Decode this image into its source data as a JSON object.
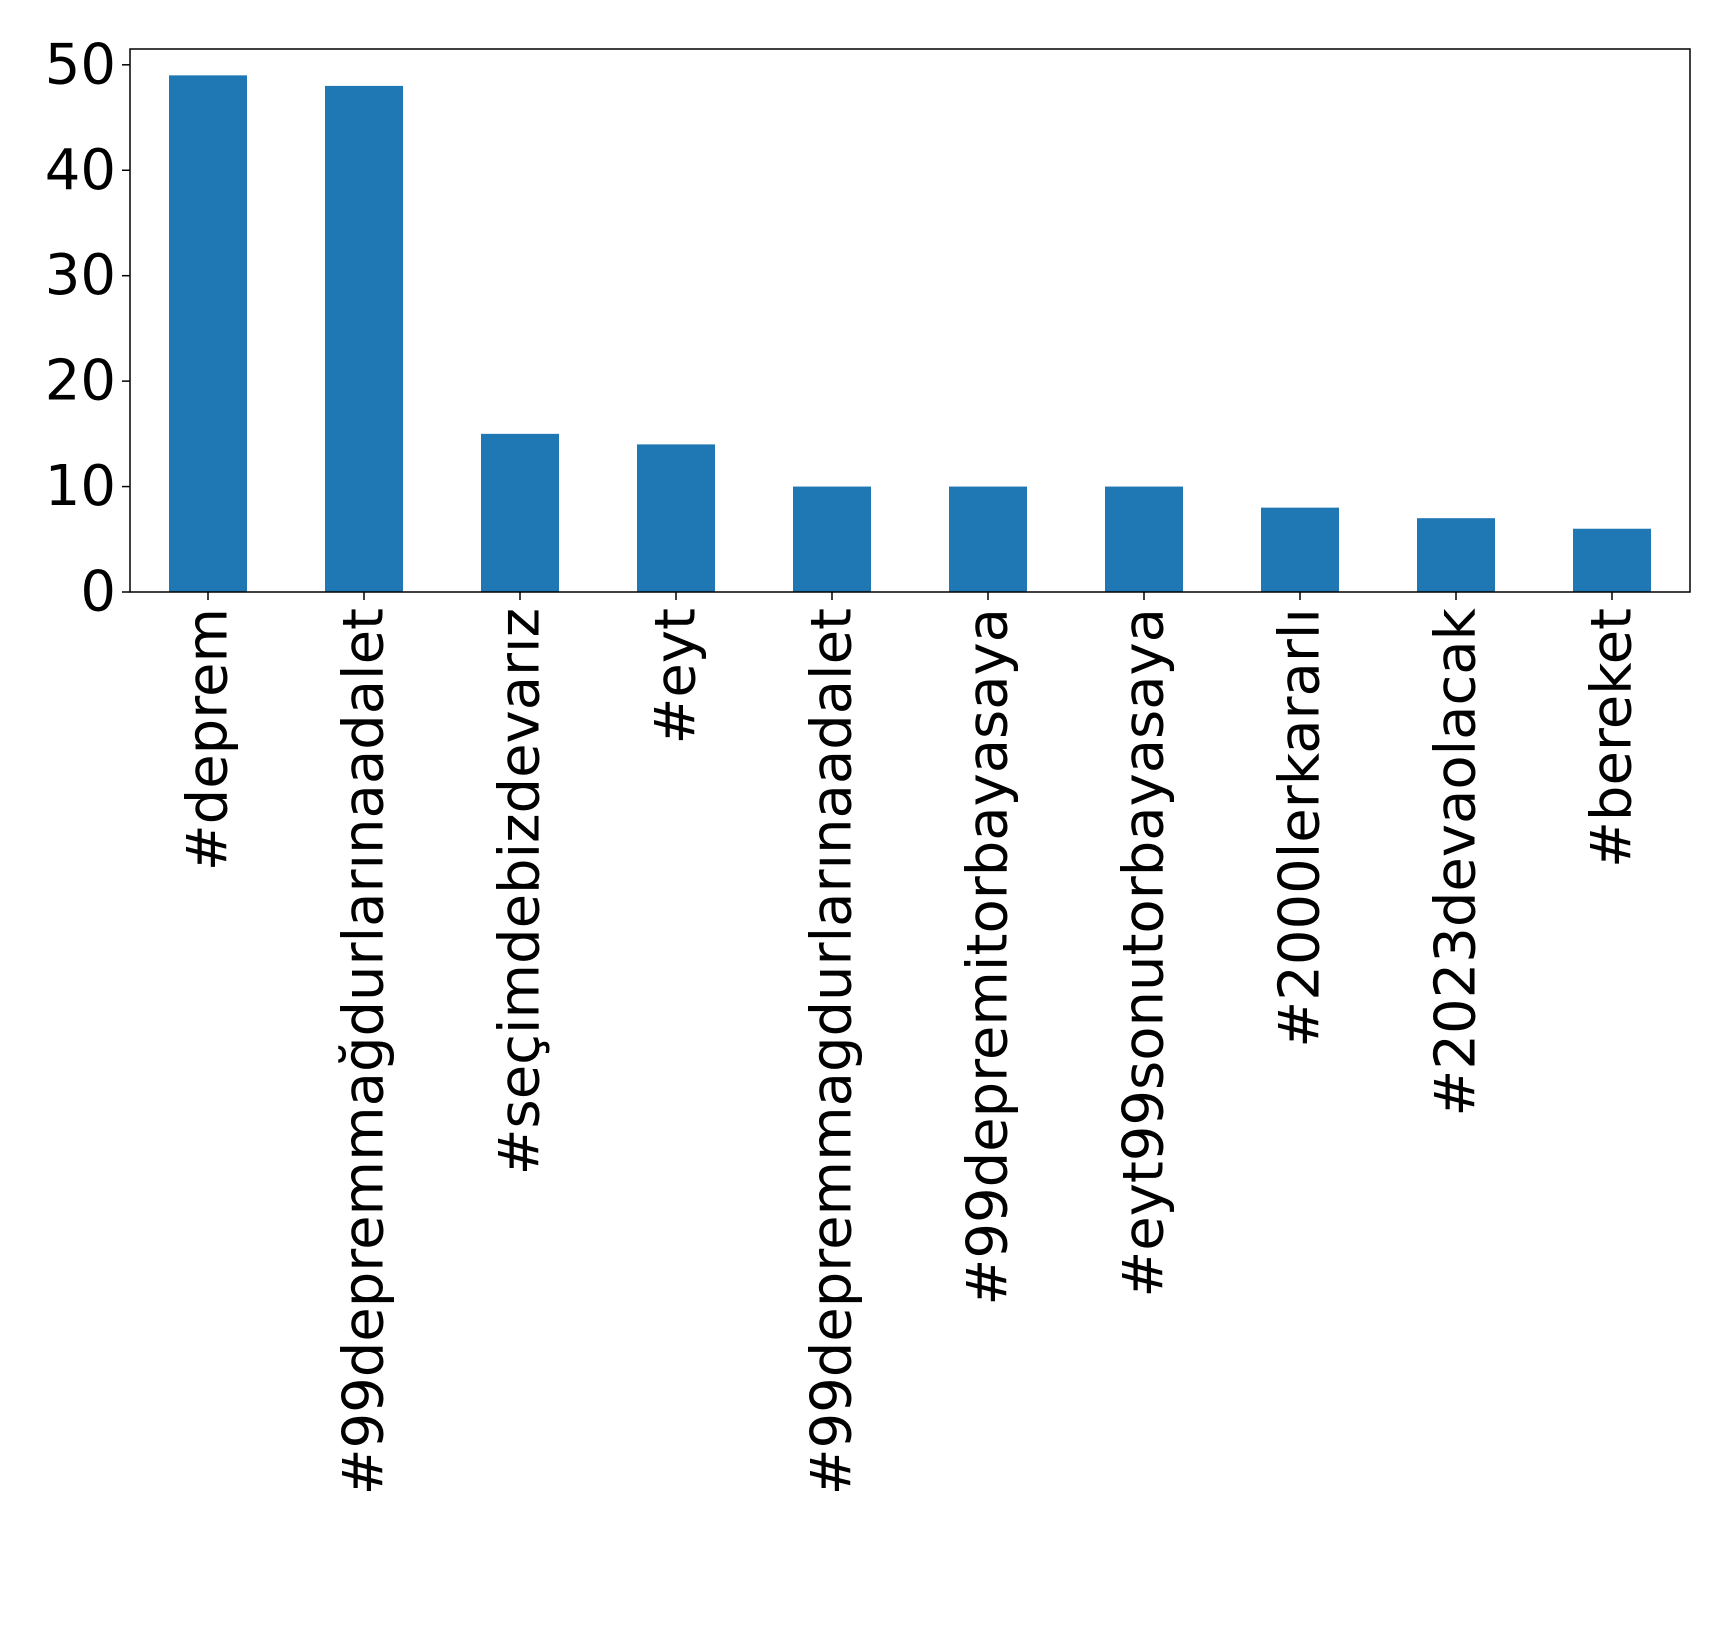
{
  "chart_data": {
    "type": "bar",
    "categories": [
      "#deprem",
      "#99depremmağdurlarınaadalet",
      "#seçimdebizdevarız",
      "#eyt",
      "#99depremmagdurlarınaadalet",
      "#99depremitorbayasaya",
      "#eyt99sonutorbayasaya",
      "#2000lerkararlı",
      "#2023devaolacak",
      "#bereket"
    ],
    "values": [
      49,
      48,
      15,
      14,
      10,
      10,
      10,
      8,
      7,
      6
    ],
    "ylim": [
      0,
      51.5
    ],
    "yticks": [
      0,
      10,
      20,
      30,
      40,
      50
    ],
    "bar_color": "#1f77b4",
    "grid": false,
    "legend": "none"
  }
}
